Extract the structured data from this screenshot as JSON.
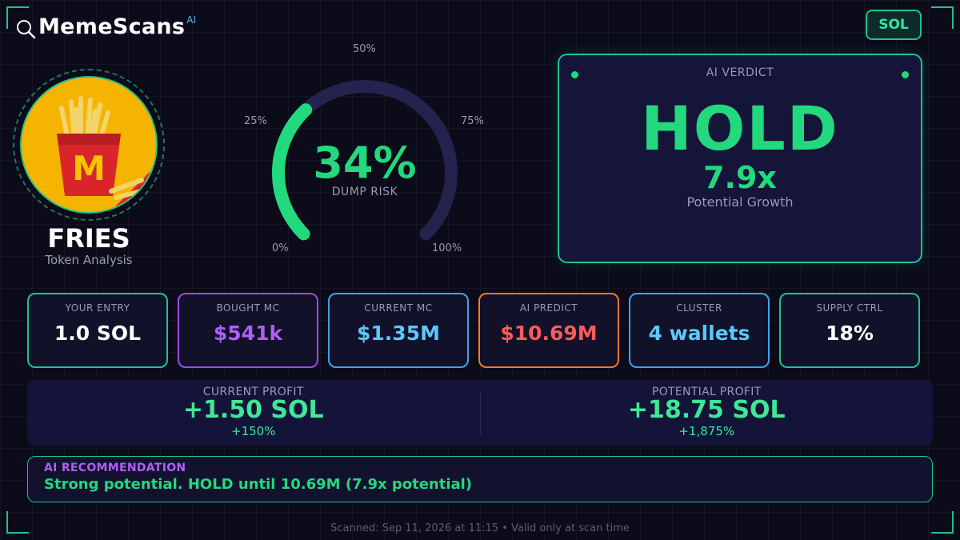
{
  "brand": {
    "name": "MemeScans",
    "superscript": "AI"
  },
  "chain_badge": "SOL",
  "token": {
    "name": "FRIES",
    "subtitle": "Token Analysis"
  },
  "gauge": {
    "value_text": "34%",
    "value": 34,
    "caption": "DUMP RISK",
    "tick_labels": [
      "0%",
      "25%",
      "50%",
      "75%",
      "100%"
    ]
  },
  "verdict": {
    "title": "AI VERDICT",
    "decision": "HOLD",
    "multiplier": "7.9x",
    "caption": "Potential Growth"
  },
  "stats": [
    {
      "label": "YOUR ENTRY",
      "value": "1.0 SOL",
      "color": "#ffffff",
      "border": "#1ec38a"
    },
    {
      "label": "BOUGHT MC",
      "value": "$541k",
      "color": "#b05ef5",
      "border": "#9b4ee8"
    },
    {
      "label": "CURRENT MC",
      "value": "$1.35M",
      "color": "#5ac8fa",
      "border": "#3aa6e8"
    },
    {
      "label": "AI PREDICT",
      "value": "$10.69M",
      "color": "#ff5a5a",
      "border": "#f07a2a"
    },
    {
      "label": "CLUSTER",
      "value": "4 wallets",
      "color": "#5ac8fa",
      "border": "#3aa6e8"
    },
    {
      "label": "SUPPLY CTRL",
      "value": "18%",
      "color": "#ffffff",
      "border": "#1ec38a"
    }
  ],
  "profit": {
    "current": {
      "label": "CURRENT PROFIT",
      "value": "+1.50 SOL",
      "pct": "+150%"
    },
    "potential": {
      "label": "POTENTIAL PROFIT",
      "value": "+18.75 SOL",
      "pct": "+1,875%"
    }
  },
  "recommendation": {
    "title": "AI RECOMMENDATION",
    "text": "Strong potential. HOLD until 10.69M (7.9x potential)"
  },
  "footer": "Scanned: Sep 11, 2026 at 11:15  •  Valid only at scan time",
  "colors": {
    "accent": "#1ec38a",
    "good": "#22d97d",
    "bg": "#0b0b1a"
  }
}
